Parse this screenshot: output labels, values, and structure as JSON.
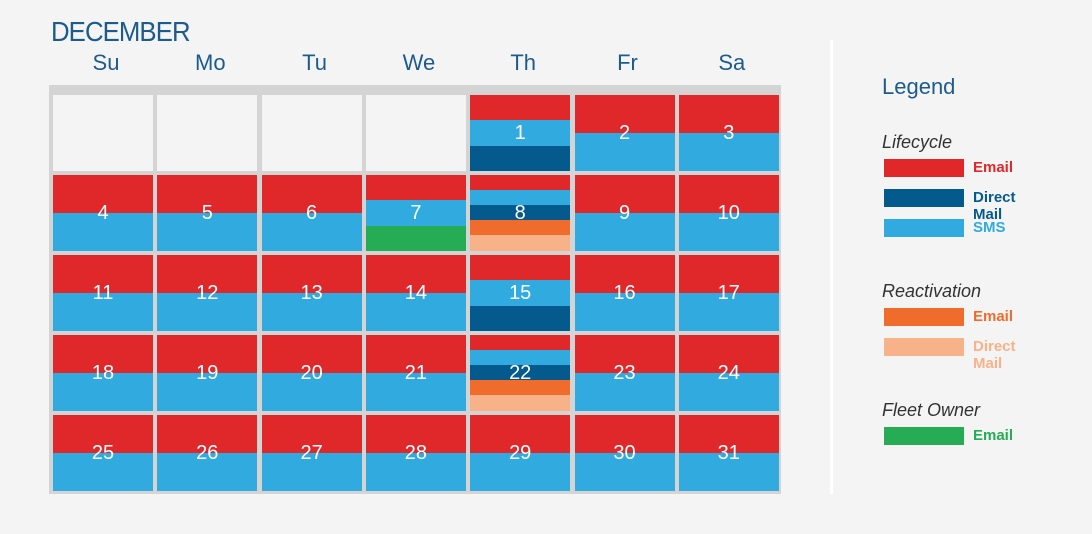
{
  "calendar": {
    "month": "DECEMBER",
    "weekdays": [
      "Su",
      "Mo",
      "Tu",
      "We",
      "Th",
      "Fr",
      "Sa"
    ],
    "start_offset": 4,
    "colors": {
      "lifecycle_email": "#e0272a",
      "lifecycle_direct_mail": "#045a8d",
      "lifecycle_sms": "#31aae0",
      "reactivation_email": "#ef6c2d",
      "reactivation_direct_mail": "#f7b28a",
      "fleet_email": "#25ac55"
    },
    "days": [
      {
        "day": "1",
        "stripes": [
          "lifecycle_email",
          "lifecycle_sms",
          "lifecycle_direct_mail"
        ]
      },
      {
        "day": "2",
        "stripes": [
          "lifecycle_email",
          "lifecycle_sms"
        ]
      },
      {
        "day": "3",
        "stripes": [
          "lifecycle_email",
          "lifecycle_sms"
        ]
      },
      {
        "day": "4",
        "stripes": [
          "lifecycle_email",
          "lifecycle_sms"
        ]
      },
      {
        "day": "5",
        "stripes": [
          "lifecycle_email",
          "lifecycle_sms"
        ]
      },
      {
        "day": "6",
        "stripes": [
          "lifecycle_email",
          "lifecycle_sms"
        ]
      },
      {
        "day": "7",
        "stripes": [
          "lifecycle_email",
          "lifecycle_sms",
          "fleet_email"
        ]
      },
      {
        "day": "8",
        "stripes": [
          "lifecycle_email",
          "lifecycle_sms",
          "lifecycle_direct_mail",
          "reactivation_email",
          "reactivation_direct_mail"
        ]
      },
      {
        "day": "9",
        "stripes": [
          "lifecycle_email",
          "lifecycle_sms"
        ]
      },
      {
        "day": "10",
        "stripes": [
          "lifecycle_email",
          "lifecycle_sms"
        ]
      },
      {
        "day": "11",
        "stripes": [
          "lifecycle_email",
          "lifecycle_sms"
        ]
      },
      {
        "day": "12",
        "stripes": [
          "lifecycle_email",
          "lifecycle_sms"
        ]
      },
      {
        "day": "13",
        "stripes": [
          "lifecycle_email",
          "lifecycle_sms"
        ]
      },
      {
        "day": "14",
        "stripes": [
          "lifecycle_email",
          "lifecycle_sms"
        ]
      },
      {
        "day": "15",
        "stripes": [
          "lifecycle_email",
          "lifecycle_sms",
          "lifecycle_direct_mail"
        ]
      },
      {
        "day": "16",
        "stripes": [
          "lifecycle_email",
          "lifecycle_sms"
        ]
      },
      {
        "day": "17",
        "stripes": [
          "lifecycle_email",
          "lifecycle_sms"
        ]
      },
      {
        "day": "18",
        "stripes": [
          "lifecycle_email",
          "lifecycle_sms"
        ]
      },
      {
        "day": "19",
        "stripes": [
          "lifecycle_email",
          "lifecycle_sms"
        ]
      },
      {
        "day": "20",
        "stripes": [
          "lifecycle_email",
          "lifecycle_sms"
        ]
      },
      {
        "day": "21",
        "stripes": [
          "lifecycle_email",
          "lifecycle_sms"
        ]
      },
      {
        "day": "22",
        "stripes": [
          "lifecycle_email",
          "lifecycle_sms",
          "lifecycle_direct_mail",
          "reactivation_email",
          "reactivation_direct_mail"
        ]
      },
      {
        "day": "23",
        "stripes": [
          "lifecycle_email",
          "lifecycle_sms"
        ]
      },
      {
        "day": "24",
        "stripes": [
          "lifecycle_email",
          "lifecycle_sms"
        ]
      },
      {
        "day": "25",
        "stripes": [
          "lifecycle_email",
          "lifecycle_sms"
        ]
      },
      {
        "day": "26",
        "stripes": [
          "lifecycle_email",
          "lifecycle_sms"
        ]
      },
      {
        "day": "27",
        "stripes": [
          "lifecycle_email",
          "lifecycle_sms"
        ]
      },
      {
        "day": "28",
        "stripes": [
          "lifecycle_email",
          "lifecycle_sms"
        ]
      },
      {
        "day": "29",
        "stripes": [
          "lifecycle_email",
          "lifecycle_sms"
        ]
      },
      {
        "day": "30",
        "stripes": [
          "lifecycle_email",
          "lifecycle_sms"
        ]
      },
      {
        "day": "31",
        "stripes": [
          "lifecycle_email",
          "lifecycle_sms"
        ]
      }
    ]
  },
  "legend": {
    "title": "Legend",
    "groups": [
      {
        "heading": "Lifecycle",
        "items": [
          {
            "label": "Email",
            "color": "#e0272a"
          },
          {
            "label": "Direct Mail",
            "color": "#045a8d"
          },
          {
            "label": "SMS",
            "color": "#31aae0"
          }
        ]
      },
      {
        "heading": "Reactivation",
        "items": [
          {
            "label": "Email",
            "color": "#ef6c2d"
          },
          {
            "label": "Direct Mail",
            "color": "#f7b28a"
          }
        ]
      },
      {
        "heading": "Fleet Owner",
        "items": [
          {
            "label": "Email",
            "color": "#25ac55"
          }
        ]
      }
    ]
  }
}
